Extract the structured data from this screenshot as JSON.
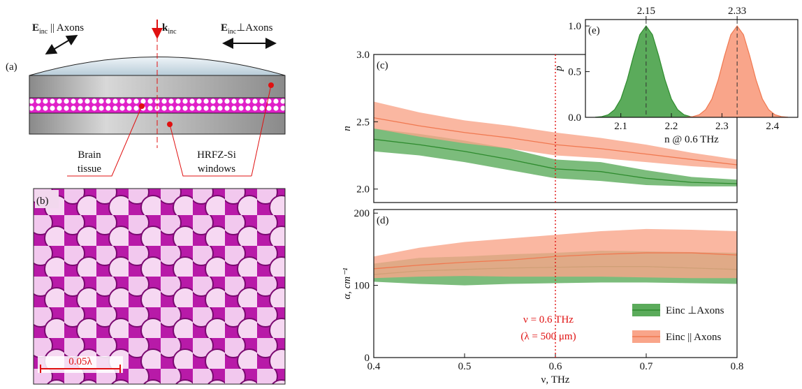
{
  "chart_data": [
    {
      "type": "line",
      "panel_label": "(c)",
      "ylabel": "n",
      "x": [
        0.4,
        0.45,
        0.5,
        0.55,
        0.6,
        0.65,
        0.7,
        0.75,
        0.8
      ],
      "xlim": [
        0.4,
        0.8
      ],
      "ylim": [
        1.9,
        3.0
      ],
      "yticks": [
        {
          "value": 2,
          "label": "2.0"
        },
        2.5,
        {
          "value": 3,
          "label": "3.0"
        }
      ],
      "vline": 0.6,
      "series": [
        {
          "name": "Einc ⊥Axons",
          "color": "#2e8b2e",
          "band_color": "#5bab5b",
          "values": [
            2.37,
            2.33,
            2.28,
            2.22,
            2.15,
            2.13,
            2.08,
            2.05,
            2.04
          ],
          "lower": [
            2.28,
            2.25,
            2.2,
            2.14,
            2.08,
            2.06,
            2.03,
            2.02,
            2.02
          ],
          "upper": [
            2.45,
            2.41,
            2.36,
            2.3,
            2.22,
            2.2,
            2.14,
            2.09,
            2.07
          ]
        },
        {
          "name": "Einc || Axons",
          "color": "#f07850",
          "band_color": "#f9a58a",
          "values": [
            2.53,
            2.47,
            2.42,
            2.38,
            2.33,
            2.3,
            2.26,
            2.22,
            2.18
          ],
          "lower": [
            2.45,
            2.39,
            2.34,
            2.3,
            2.25,
            2.23,
            2.2,
            2.17,
            2.15
          ],
          "upper": [
            2.65,
            2.57,
            2.51,
            2.47,
            2.42,
            2.38,
            2.33,
            2.27,
            2.22
          ]
        }
      ]
    },
    {
      "type": "line",
      "panel_label": "(d)",
      "ylabel": "α, cm⁻¹",
      "xlabel": "ν, THz",
      "x": [
        0.4,
        0.45,
        0.5,
        0.55,
        0.6,
        0.65,
        0.7,
        0.75,
        0.8
      ],
      "xlim": [
        0.4,
        0.8
      ],
      "ylim": [
        0,
        205
      ],
      "xticks": [
        0.4,
        0.5,
        0.6,
        0.7,
        0.8
      ],
      "yticks": [
        0,
        100,
        200
      ],
      "vline": 0.6,
      "annotations": [
        "ν = 0.6 THz",
        "(λ = 500 μm)"
      ],
      "legend": "lower right",
      "series": [
        {
          "name": "Einc ⊥Axons",
          "color": "#2e8b2e",
          "band_color": "#5bab5b",
          "values": [
            115,
            120,
            122,
            124,
            125,
            126,
            126,
            124,
            122
          ],
          "lower": [
            105,
            102,
            100,
            102,
            103,
            104,
            104,
            103,
            102
          ],
          "upper": [
            130,
            138,
            140,
            143,
            145,
            148,
            147,
            146,
            145
          ]
        },
        {
          "name": "Einc || Axons",
          "color": "#f07850",
          "band_color": "#f9a58a",
          "values": [
            123,
            128,
            132,
            135,
            140,
            143,
            145,
            145,
            142
          ],
          "lower": [
            110,
            112,
            113,
            112,
            112,
            112,
            111,
            110,
            110
          ],
          "upper": [
            140,
            152,
            160,
            165,
            170,
            175,
            178,
            177,
            175
          ]
        }
      ]
    },
    {
      "type": "line",
      "fill": true,
      "panel_label": "(e)",
      "ylabel": "p",
      "xlabel": "n @ 0.6 THz",
      "xlim": [
        2.03,
        2.45
      ],
      "ylim": [
        0,
        1.07
      ],
      "xticks": [
        2.1,
        2.2,
        2.3,
        2.4
      ],
      "yticks": [
        {
          "value": 0,
          "label": "0.0"
        },
        0.5,
        {
          "value": 1,
          "label": "1.0"
        }
      ],
      "peak_labels": [
        2.15,
        2.33
      ],
      "series": [
        {
          "color": "#2e8b2e",
          "band_color": "#5bab5b",
          "x": [
            2.05,
            2.0625,
            2.075,
            2.0875,
            2.1,
            2.1125,
            2.125,
            2.1375,
            2.15,
            2.1625,
            2.175,
            2.1875,
            2.2,
            2.2125,
            2.225,
            2.2375,
            2.25
          ],
          "values": [
            0.002,
            0.008,
            0.028,
            0.083,
            0.2,
            0.408,
            0.67,
            0.905,
            1.0,
            0.905,
            0.67,
            0.408,
            0.2,
            0.083,
            0.028,
            0.008,
            0.002
          ]
        },
        {
          "color": "#f07850",
          "band_color": "#f9a58a",
          "x": [
            2.23,
            2.2425,
            2.255,
            2.2675,
            2.28,
            2.2925,
            2.305,
            2.3175,
            2.33,
            2.3425,
            2.355,
            2.3675,
            2.38,
            2.3925,
            2.405,
            2.4175,
            2.43
          ],
          "values": [
            0.002,
            0.008,
            0.028,
            0.083,
            0.2,
            0.408,
            0.67,
            0.905,
            1.0,
            0.905,
            0.67,
            0.408,
            0.2,
            0.083,
            0.028,
            0.008,
            0.002
          ]
        }
      ]
    }
  ],
  "panel_a": {
    "label": "(a)",
    "e_parallel": {
      "symbol": "E",
      "subscript": "inc",
      "text": " || Axons"
    },
    "k": {
      "symbol": "k",
      "subscript": "inc"
    },
    "e_perp": {
      "symbol": "E",
      "subscript": "inc",
      "text": "⊥Axons"
    },
    "brain": [
      "Brain",
      "tissue"
    ],
    "windows": [
      "HRFZ-Si",
      "windows"
    ]
  },
  "panel_b": {
    "label": "(b)",
    "scale": "0.05λ"
  }
}
